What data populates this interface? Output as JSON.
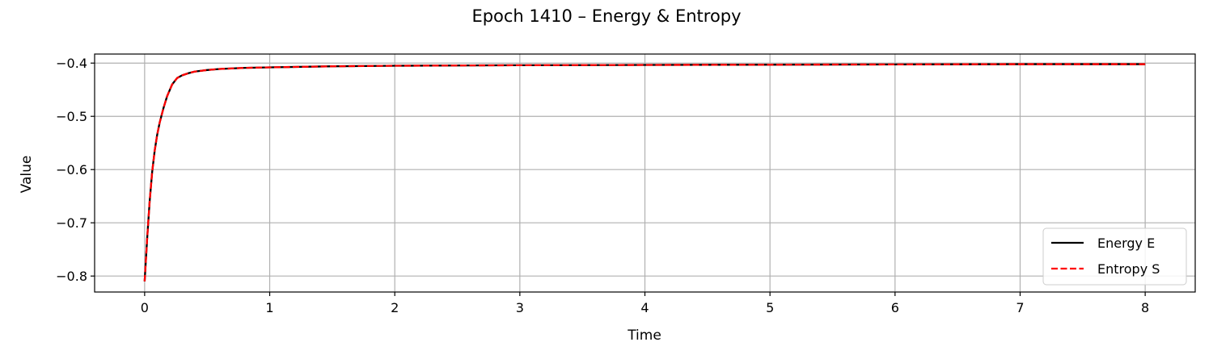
{
  "chart_data": {
    "type": "line",
    "title": "Epoch 1410 – Energy & Entropy",
    "xlabel": "Time",
    "ylabel": "Value",
    "xlim": [
      -0.4,
      8.4
    ],
    "ylim": [
      -0.83,
      -0.383
    ],
    "xticks": [
      0,
      1,
      2,
      3,
      4,
      5,
      6,
      7,
      8
    ],
    "xtick_labels": [
      "0",
      "1",
      "2",
      "3",
      "4",
      "5",
      "6",
      "7",
      "8"
    ],
    "yticks": [
      -0.8,
      -0.7,
      -0.6,
      -0.5,
      -0.4
    ],
    "ytick_labels": [
      "−0.8",
      "−0.7",
      "−0.6",
      "−0.5",
      "−0.4"
    ],
    "grid": true,
    "legend_position": "lower-right",
    "series": [
      {
        "name": "Energy E",
        "color": "#000000",
        "style": "solid",
        "x": [
          0,
          0.02,
          0.04,
          0.06,
          0.08,
          0.1,
          0.12,
          0.15,
          0.18,
          0.22,
          0.26,
          0.3,
          0.35,
          0.4,
          0.5,
          0.6,
          0.8,
          1.0,
          1.5,
          2,
          3,
          4,
          5,
          6,
          7,
          8
        ],
        "values": [
          -0.81,
          -0.73,
          -0.66,
          -0.605,
          -0.565,
          -0.535,
          -0.512,
          -0.485,
          -0.462,
          -0.44,
          -0.428,
          -0.423,
          -0.419,
          -0.416,
          -0.413,
          -0.411,
          -0.409,
          -0.408,
          -0.406,
          -0.405,
          -0.404,
          -0.4035,
          -0.403,
          -0.4025,
          -0.402,
          -0.402
        ]
      },
      {
        "name": "Entropy S",
        "color": "#ff0000",
        "style": "dashed",
        "x": [
          0,
          0.02,
          0.04,
          0.06,
          0.08,
          0.1,
          0.12,
          0.15,
          0.18,
          0.22,
          0.26,
          0.3,
          0.35,
          0.4,
          0.5,
          0.6,
          0.8,
          1.0,
          1.5,
          2,
          3,
          4,
          5,
          6,
          7,
          8
        ],
        "values": [
          -0.81,
          -0.73,
          -0.66,
          -0.605,
          -0.565,
          -0.535,
          -0.512,
          -0.485,
          -0.462,
          -0.44,
          -0.428,
          -0.423,
          -0.419,
          -0.416,
          -0.413,
          -0.411,
          -0.409,
          -0.408,
          -0.406,
          -0.405,
          -0.404,
          -0.4035,
          -0.403,
          -0.4025,
          -0.402,
          -0.402
        ]
      }
    ]
  }
}
